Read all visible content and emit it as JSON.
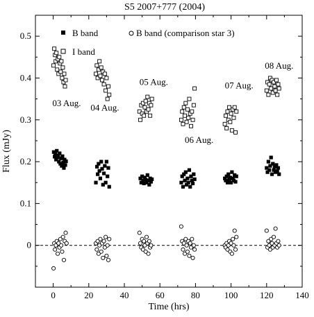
{
  "chart_data": {
    "type": "scatter",
    "title": "S5 2007+777 (2004)",
    "xlabel": "Time (hrs)",
    "ylabel": "Flux (mJy)",
    "xlim": [
      -10,
      140
    ],
    "ylim": [
      -0.1,
      0.55
    ],
    "xticks": [
      0,
      20,
      40,
      60,
      80,
      100,
      120,
      140
    ],
    "yticks": [
      0,
      0.1,
      0.2,
      0.3,
      0.4,
      0.5
    ],
    "xtick_labels": [
      "0",
      "20",
      "40",
      "60",
      "80",
      "100",
      "120",
      "140"
    ],
    "ytick_labels": [
      "0",
      "0.1",
      "0.2",
      "0.3",
      "0.4",
      "0.5"
    ],
    "grid": false,
    "legend_position": "top",
    "reference_line": {
      "y": 0,
      "style": "dashed"
    },
    "annotations": [
      {
        "text": "03 Aug.",
        "x": -0.5,
        "y": 0.333
      },
      {
        "text": "04 Aug.",
        "x": 21,
        "y": 0.322
      },
      {
        "text": "05 Aug.",
        "x": 48.5,
        "y": 0.383
      },
      {
        "text": "06 Aug.",
        "x": 74,
        "y": 0.245
      },
      {
        "text": "07 Aug.",
        "x": 96.5,
        "y": 0.375
      },
      {
        "text": "08 Aug.",
        "x": 119,
        "y": 0.422
      }
    ],
    "series": [
      {
        "name": "B band",
        "marker": "filled-square",
        "points": [
          [
            0.3,
            0.223
          ],
          [
            0.8,
            0.212
          ],
          [
            1.2,
            0.218
          ],
          [
            1.6,
            0.205
          ],
          [
            2.0,
            0.226
          ],
          [
            2.4,
            0.21
          ],
          [
            2.8,
            0.215
          ],
          [
            3.2,
            0.2
          ],
          [
            3.6,
            0.22
          ],
          [
            4.0,
            0.195
          ],
          [
            4.4,
            0.208
          ],
          [
            4.8,
            0.19
          ],
          [
            5.2,
            0.213
          ],
          [
            5.6,
            0.198
          ],
          [
            6.0,
            0.185
          ],
          [
            6.4,
            0.205
          ],
          [
            6.8,
            0.192
          ],
          [
            7.2,
            0.201
          ],
          [
            24.0,
            0.15
          ],
          [
            24.6,
            0.188
          ],
          [
            25.0,
            0.17
          ],
          [
            25.5,
            0.195
          ],
          [
            26.0,
            0.178
          ],
          [
            26.5,
            0.16
          ],
          [
            27.0,
            0.2
          ],
          [
            27.5,
            0.183
          ],
          [
            28.0,
            0.145
          ],
          [
            28.5,
            0.172
          ],
          [
            29.0,
            0.19
          ],
          [
            29.5,
            0.15
          ],
          [
            30.0,
            0.2
          ],
          [
            30.5,
            0.165
          ],
          [
            31.0,
            0.185
          ],
          [
            31.5,
            0.14
          ],
          [
            49.0,
            0.16
          ],
          [
            49.5,
            0.15
          ],
          [
            50.0,
            0.165
          ],
          [
            50.5,
            0.155
          ],
          [
            51.0,
            0.148
          ],
          [
            51.5,
            0.162
          ],
          [
            52.0,
            0.157
          ],
          [
            52.5,
            0.15
          ],
          [
            53.0,
            0.168
          ],
          [
            53.5,
            0.155
          ],
          [
            54.0,
            0.145
          ],
          [
            54.5,
            0.16
          ],
          [
            55.0,
            0.152
          ],
          [
            55.5,
            0.158
          ],
          [
            72.0,
            0.15
          ],
          [
            72.5,
            0.165
          ],
          [
            73.0,
            0.14
          ],
          [
            73.5,
            0.17
          ],
          [
            74.0,
            0.155
          ],
          [
            74.5,
            0.175
          ],
          [
            75.0,
            0.145
          ],
          [
            75.5,
            0.16
          ],
          [
            76.0,
            0.15
          ],
          [
            76.5,
            0.18
          ],
          [
            77.0,
            0.14
          ],
          [
            77.5,
            0.165
          ],
          [
            78.0,
            0.155
          ],
          [
            78.5,
            0.148
          ],
          [
            79.0,
            0.17
          ],
          [
            79.5,
            0.158
          ],
          [
            96.5,
            0.16
          ],
          [
            97.0,
            0.155
          ],
          [
            97.5,
            0.165
          ],
          [
            98.0,
            0.15
          ],
          [
            98.5,
            0.17
          ],
          [
            99.0,
            0.158
          ],
          [
            99.5,
            0.162
          ],
          [
            100.0,
            0.15
          ],
          [
            100.5,
            0.175
          ],
          [
            101.0,
            0.16
          ],
          [
            101.5,
            0.155
          ],
          [
            102.0,
            0.168
          ],
          [
            102.5,
            0.152
          ],
          [
            103.0,
            0.165
          ],
          [
            120.0,
            0.185
          ],
          [
            120.5,
            0.175
          ],
          [
            121.0,
            0.2
          ],
          [
            121.5,
            0.18
          ],
          [
            122.0,
            0.19
          ],
          [
            122.5,
            0.21
          ],
          [
            123.0,
            0.17
          ],
          [
            123.5,
            0.195
          ],
          [
            124.0,
            0.18
          ],
          [
            124.5,
            0.188
          ],
          [
            125.0,
            0.175
          ],
          [
            125.5,
            0.192
          ],
          [
            126.0,
            0.178
          ],
          [
            126.5,
            0.185
          ],
          [
            127.0,
            0.17
          ]
        ]
      },
      {
        "name": "I band",
        "marker": "open-square",
        "points": [
          [
            0.2,
            0.43
          ],
          [
            0.6,
            0.47
          ],
          [
            1.0,
            0.455
          ],
          [
            1.4,
            0.44
          ],
          [
            1.8,
            0.46
          ],
          [
            2.2,
            0.42
          ],
          [
            2.6,
            0.445
          ],
          [
            3.0,
            0.41
          ],
          [
            3.4,
            0.45
          ],
          [
            3.8,
            0.435
          ],
          [
            4.2,
            0.415
          ],
          [
            4.6,
            0.44
          ],
          [
            5.0,
            0.4
          ],
          [
            5.4,
            0.425
          ],
          [
            5.8,
            0.39
          ],
          [
            6.2,
            0.41
          ],
          [
            6.6,
            0.38
          ],
          [
            7.0,
            0.395
          ],
          [
            24.0,
            0.41
          ],
          [
            24.5,
            0.43
          ],
          [
            25.0,
            0.4
          ],
          [
            25.5,
            0.42
          ],
          [
            26.0,
            0.44
          ],
          [
            26.5,
            0.405
          ],
          [
            27.0,
            0.425
          ],
          [
            27.5,
            0.395
          ],
          [
            28.0,
            0.415
          ],
          [
            28.5,
            0.385
          ],
          [
            29.0,
            0.41
          ],
          [
            29.5,
            0.37
          ],
          [
            30.0,
            0.4
          ],
          [
            30.5,
            0.35
          ],
          [
            31.0,
            0.38
          ],
          [
            31.5,
            0.36
          ],
          [
            48.5,
            0.32
          ],
          [
            49.0,
            0.3
          ],
          [
            49.5,
            0.335
          ],
          [
            50.0,
            0.315
          ],
          [
            50.5,
            0.34
          ],
          [
            51.0,
            0.31
          ],
          [
            51.5,
            0.33
          ],
          [
            52.0,
            0.345
          ],
          [
            52.5,
            0.32
          ],
          [
            53.0,
            0.355
          ],
          [
            53.5,
            0.325
          ],
          [
            54.0,
            0.34
          ],
          [
            54.5,
            0.31
          ],
          [
            55.0,
            0.335
          ],
          [
            55.5,
            0.35
          ],
          [
            72.0,
            0.3
          ],
          [
            72.5,
            0.32
          ],
          [
            73.0,
            0.29
          ],
          [
            73.5,
            0.33
          ],
          [
            74.0,
            0.31
          ],
          [
            74.5,
            0.34
          ],
          [
            75.0,
            0.295
          ],
          [
            75.5,
            0.325
          ],
          [
            76.0,
            0.305
          ],
          [
            76.5,
            0.35
          ],
          [
            77.0,
            0.315
          ],
          [
            77.5,
            0.285
          ],
          [
            78.0,
            0.32
          ],
          [
            78.5,
            0.3
          ],
          [
            79.0,
            0.335
          ],
          [
            79.5,
            0.375
          ],
          [
            96.5,
            0.29
          ],
          [
            97.0,
            0.31
          ],
          [
            97.5,
            0.28
          ],
          [
            98.0,
            0.32
          ],
          [
            98.5,
            0.3
          ],
          [
            99.0,
            0.33
          ],
          [
            99.5,
            0.295
          ],
          [
            100.0,
            0.315
          ],
          [
            100.5,
            0.275
          ],
          [
            101.0,
            0.325
          ],
          [
            101.5,
            0.305
          ],
          [
            102.0,
            0.33
          ],
          [
            102.5,
            0.27
          ],
          [
            103.0,
            0.32
          ],
          [
            120.0,
            0.37
          ],
          [
            120.5,
            0.39
          ],
          [
            121.0,
            0.36
          ],
          [
            121.5,
            0.385
          ],
          [
            122.0,
            0.4
          ],
          [
            122.5,
            0.375
          ],
          [
            123.0,
            0.395
          ],
          [
            123.5,
            0.365
          ],
          [
            124.0,
            0.39
          ],
          [
            124.5,
            0.38
          ],
          [
            125.0,
            0.37
          ],
          [
            125.5,
            0.395
          ],
          [
            126.0,
            0.36
          ],
          [
            126.5,
            0.385
          ],
          [
            127.0,
            0.375
          ]
        ]
      },
      {
        "name": "B band (comparison star 3)",
        "marker": "open-circle",
        "points": [
          [
            0.2,
            -0.055
          ],
          [
            0.6,
            0.005
          ],
          [
            1.0,
            -0.01
          ],
          [
            1.5,
            0.0
          ],
          [
            2.0,
            0.01
          ],
          [
            2.5,
            -0.02
          ],
          [
            3.0,
            0.005
          ],
          [
            3.5,
            -0.005
          ],
          [
            4.0,
            0.015
          ],
          [
            4.5,
            0.0
          ],
          [
            5.0,
            -0.015
          ],
          [
            5.5,
            0.02
          ],
          [
            6.0,
            -0.035
          ],
          [
            6.5,
            0.01
          ],
          [
            7.0,
            0.03
          ],
          [
            7.5,
            0.005
          ],
          [
            24.0,
            0.005
          ],
          [
            24.5,
            -0.01
          ],
          [
            25.0,
            0.01
          ],
          [
            25.5,
            -0.02
          ],
          [
            26.0,
            0.0
          ],
          [
            26.5,
            0.015
          ],
          [
            27.0,
            -0.015
          ],
          [
            27.5,
            0.005
          ],
          [
            28.0,
            -0.03
          ],
          [
            28.5,
            0.01
          ],
          [
            29.0,
            -0.005
          ],
          [
            29.5,
            0.02
          ],
          [
            30.0,
            -0.025
          ],
          [
            30.5,
            0.0
          ],
          [
            31.0,
            -0.035
          ],
          [
            31.5,
            0.015
          ],
          [
            48.5,
            0.03
          ],
          [
            49.0,
            0.005
          ],
          [
            49.5,
            -0.005
          ],
          [
            50.0,
            0.015
          ],
          [
            50.5,
            -0.01
          ],
          [
            51.0,
            0.01
          ],
          [
            51.5,
            0.0
          ],
          [
            52.0,
            -0.015
          ],
          [
            52.5,
            0.02
          ],
          [
            53.0,
            0.005
          ],
          [
            53.5,
            -0.02
          ],
          [
            54.0,
            0.01
          ],
          [
            54.5,
            -0.005
          ],
          [
            55.0,
            0.0
          ],
          [
            72.0,
            0.045
          ],
          [
            72.5,
            0.01
          ],
          [
            73.0,
            -0.01
          ],
          [
            73.5,
            0.005
          ],
          [
            74.0,
            -0.02
          ],
          [
            74.5,
            0.015
          ],
          [
            75.0,
            0.0
          ],
          [
            75.5,
            -0.015
          ],
          [
            76.0,
            0.01
          ],
          [
            76.5,
            -0.025
          ],
          [
            77.0,
            0.005
          ],
          [
            77.5,
            -0.005
          ],
          [
            78.0,
            0.015
          ],
          [
            78.5,
            -0.03
          ],
          [
            79.0,
            0.0
          ],
          [
            79.5,
            -0.01
          ],
          [
            96.5,
            0.0
          ],
          [
            97.0,
            -0.005
          ],
          [
            97.5,
            0.005
          ],
          [
            98.0,
            -0.01
          ],
          [
            98.5,
            0.0
          ],
          [
            99.0,
            0.01
          ],
          [
            99.5,
            -0.015
          ],
          [
            100.0,
            0.005
          ],
          [
            100.5,
            -0.02
          ],
          [
            101.0,
            0.015
          ],
          [
            101.5,
            0.0
          ],
          [
            102.0,
            0.035
          ],
          [
            102.5,
            -0.01
          ],
          [
            103.0,
            0.02
          ],
          [
            120.0,
            0.035
          ],
          [
            120.5,
            -0.005
          ],
          [
            121.0,
            0.01
          ],
          [
            121.5,
            0.0
          ],
          [
            122.0,
            -0.01
          ],
          [
            122.5,
            0.015
          ],
          [
            123.0,
            0.005
          ],
          [
            123.5,
            -0.005
          ],
          [
            124.0,
            0.02
          ],
          [
            124.5,
            0.0
          ],
          [
            125.0,
            0.04
          ],
          [
            125.5,
            0.005
          ],
          [
            126.0,
            -0.005
          ],
          [
            126.5,
            0.01
          ],
          [
            127.0,
            0.0
          ]
        ]
      }
    ]
  }
}
